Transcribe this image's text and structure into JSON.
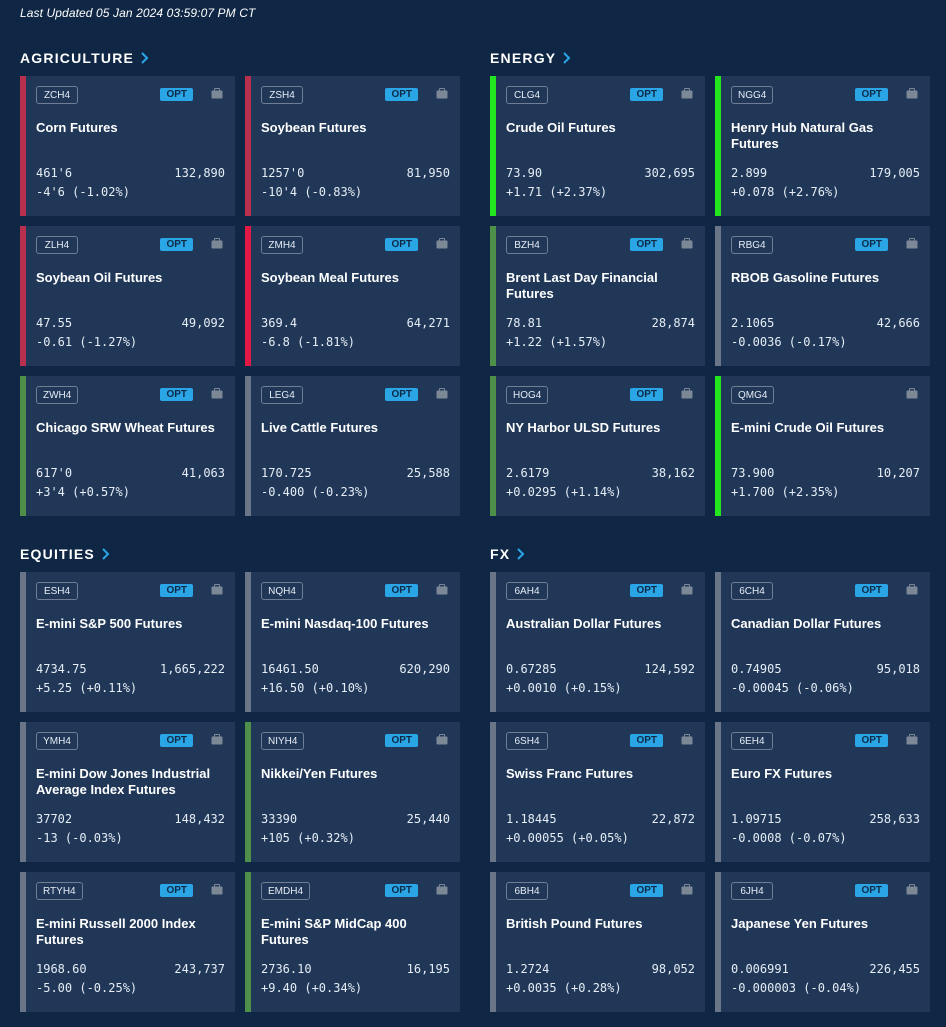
{
  "last_updated": "Last Updated 05 Jan 2024 03:59:07 PM CT",
  "colors": {
    "up_bright": "#22e51f",
    "up_muted": "#4e8f4a",
    "down_bright": "#e21846",
    "down_muted": "#b9304f",
    "neutral": "#6a7587",
    "background": "#0f2744",
    "card": "#203758",
    "opt": "#2aa5e6"
  },
  "sections": {
    "agriculture": {
      "title": "AGRICULTURE",
      "cards": [
        {
          "code": "ZCH4",
          "opt": "OPT",
          "name": "Corn Futures",
          "price": "461'6",
          "volume": "132,890",
          "change": "-4'6 (-1.02%)",
          "bar": "down_muted"
        },
        {
          "code": "ZSH4",
          "opt": "OPT",
          "name": "Soybean Futures",
          "price": "1257'0",
          "volume": "81,950",
          "change": "-10'4 (-0.83%)",
          "bar": "down_muted"
        },
        {
          "code": "ZLH4",
          "opt": "OPT",
          "name": "Soybean Oil Futures",
          "price": "47.55",
          "volume": "49,092",
          "change": "-0.61 (-1.27%)",
          "bar": "down_muted"
        },
        {
          "code": "ZMH4",
          "opt": "OPT",
          "name": "Soybean Meal Futures",
          "price": "369.4",
          "volume": "64,271",
          "change": "-6.8 (-1.81%)",
          "bar": "down_bright"
        },
        {
          "code": "ZWH4",
          "opt": "OPT",
          "name": "Chicago SRW Wheat Futures",
          "price": "617'0",
          "volume": "41,063",
          "change": "+3'4 (+0.57%)",
          "bar": "up_muted"
        },
        {
          "code": "LEG4",
          "opt": "OPT",
          "name": "Live Cattle Futures",
          "price": "170.725",
          "volume": "25,588",
          "change": "-0.400 (-0.23%)",
          "bar": "neutral"
        }
      ]
    },
    "energy": {
      "title": "ENERGY",
      "cards": [
        {
          "code": "CLG4",
          "opt": "OPT",
          "name": "Crude Oil Futures",
          "price": "73.90",
          "volume": "302,695",
          "change": "+1.71 (+2.37%)",
          "bar": "up_bright"
        },
        {
          "code": "NGG4",
          "opt": "OPT",
          "name": "Henry Hub Natural Gas Futures",
          "price": "2.899",
          "volume": "179,005",
          "change": "+0.078 (+2.76%)",
          "bar": "up_bright"
        },
        {
          "code": "BZH4",
          "opt": "OPT",
          "name": "Brent Last Day Financial Futures",
          "price": "78.81",
          "volume": "28,874",
          "change": "+1.22 (+1.57%)",
          "bar": "up_muted"
        },
        {
          "code": "RBG4",
          "opt": "OPT",
          "name": "RBOB Gasoline Futures",
          "price": "2.1065",
          "volume": "42,666",
          "change": "-0.0036 (-0.17%)",
          "bar": "neutral"
        },
        {
          "code": "HOG4",
          "opt": "OPT",
          "name": "NY Harbor ULSD Futures",
          "price": "2.6179",
          "volume": "38,162",
          "change": "+0.0295 (+1.14%)",
          "bar": "up_muted"
        },
        {
          "code": "QMG4",
          "opt": "",
          "name": "E-mini Crude Oil Futures",
          "price": "73.900",
          "volume": "10,207",
          "change": "+1.700 (+2.35%)",
          "bar": "up_bright"
        }
      ]
    },
    "equities": {
      "title": "EQUITIES",
      "cards": [
        {
          "code": "ESH4",
          "opt": "OPT",
          "name": "E-mini S&P 500 Futures",
          "price": "4734.75",
          "volume": "1,665,222",
          "change": "+5.25 (+0.11%)",
          "bar": "neutral"
        },
        {
          "code": "NQH4",
          "opt": "OPT",
          "name": "E-mini Nasdaq-100 Futures",
          "price": "16461.50",
          "volume": "620,290",
          "change": "+16.50 (+0.10%)",
          "bar": "neutral"
        },
        {
          "code": "YMH4",
          "opt": "OPT",
          "name": "E-mini Dow Jones Industrial Average Index Futures",
          "price": "37702",
          "volume": "148,432",
          "change": "-13 (-0.03%)",
          "bar": "neutral"
        },
        {
          "code": "NIYH4",
          "opt": "OPT",
          "name": "Nikkei/Yen Futures",
          "price": "33390",
          "volume": "25,440",
          "change": "+105 (+0.32%)",
          "bar": "up_muted"
        },
        {
          "code": "RTYH4",
          "opt": "OPT",
          "name": "E-mini  Russell 2000 Index Futures",
          "price": "1968.60",
          "volume": "243,737",
          "change": "-5.00 (-0.25%)",
          "bar": "neutral"
        },
        {
          "code": "EMDH4",
          "opt": "OPT",
          "name": "E-mini S&P MidCap 400 Futures",
          "price": "2736.10",
          "volume": "16,195",
          "change": "+9.40 (+0.34%)",
          "bar": "up_muted"
        }
      ]
    },
    "fx": {
      "title": "FX",
      "cards": [
        {
          "code": "6AH4",
          "opt": "OPT",
          "name": "Australian Dollar Futures",
          "price": "0.67285",
          "volume": "124,592",
          "change": "+0.0010 (+0.15%)",
          "bar": "neutral"
        },
        {
          "code": "6CH4",
          "opt": "OPT",
          "name": "Canadian Dollar Futures",
          "price": "0.74905",
          "volume": "95,018",
          "change": "-0.00045 (-0.06%)",
          "bar": "neutral"
        },
        {
          "code": "6SH4",
          "opt": "OPT",
          "name": "Swiss Franc Futures",
          "price": "1.18445",
          "volume": "22,872",
          "change": "+0.00055 (+0.05%)",
          "bar": "neutral"
        },
        {
          "code": "6EH4",
          "opt": "OPT",
          "name": "Euro FX Futures",
          "price": "1.09715",
          "volume": "258,633",
          "change": "-0.0008 (-0.07%)",
          "bar": "neutral"
        },
        {
          "code": "6BH4",
          "opt": "OPT",
          "name": "British Pound Futures",
          "price": "1.2724",
          "volume": "98,052",
          "change": "+0.0035 (+0.28%)",
          "bar": "neutral"
        },
        {
          "code": "6JH4",
          "opt": "OPT",
          "name": "Japanese Yen Futures",
          "price": "0.006991",
          "volume": "226,455",
          "change": "-0.000003 (-0.04%)",
          "bar": "neutral"
        }
      ]
    }
  }
}
